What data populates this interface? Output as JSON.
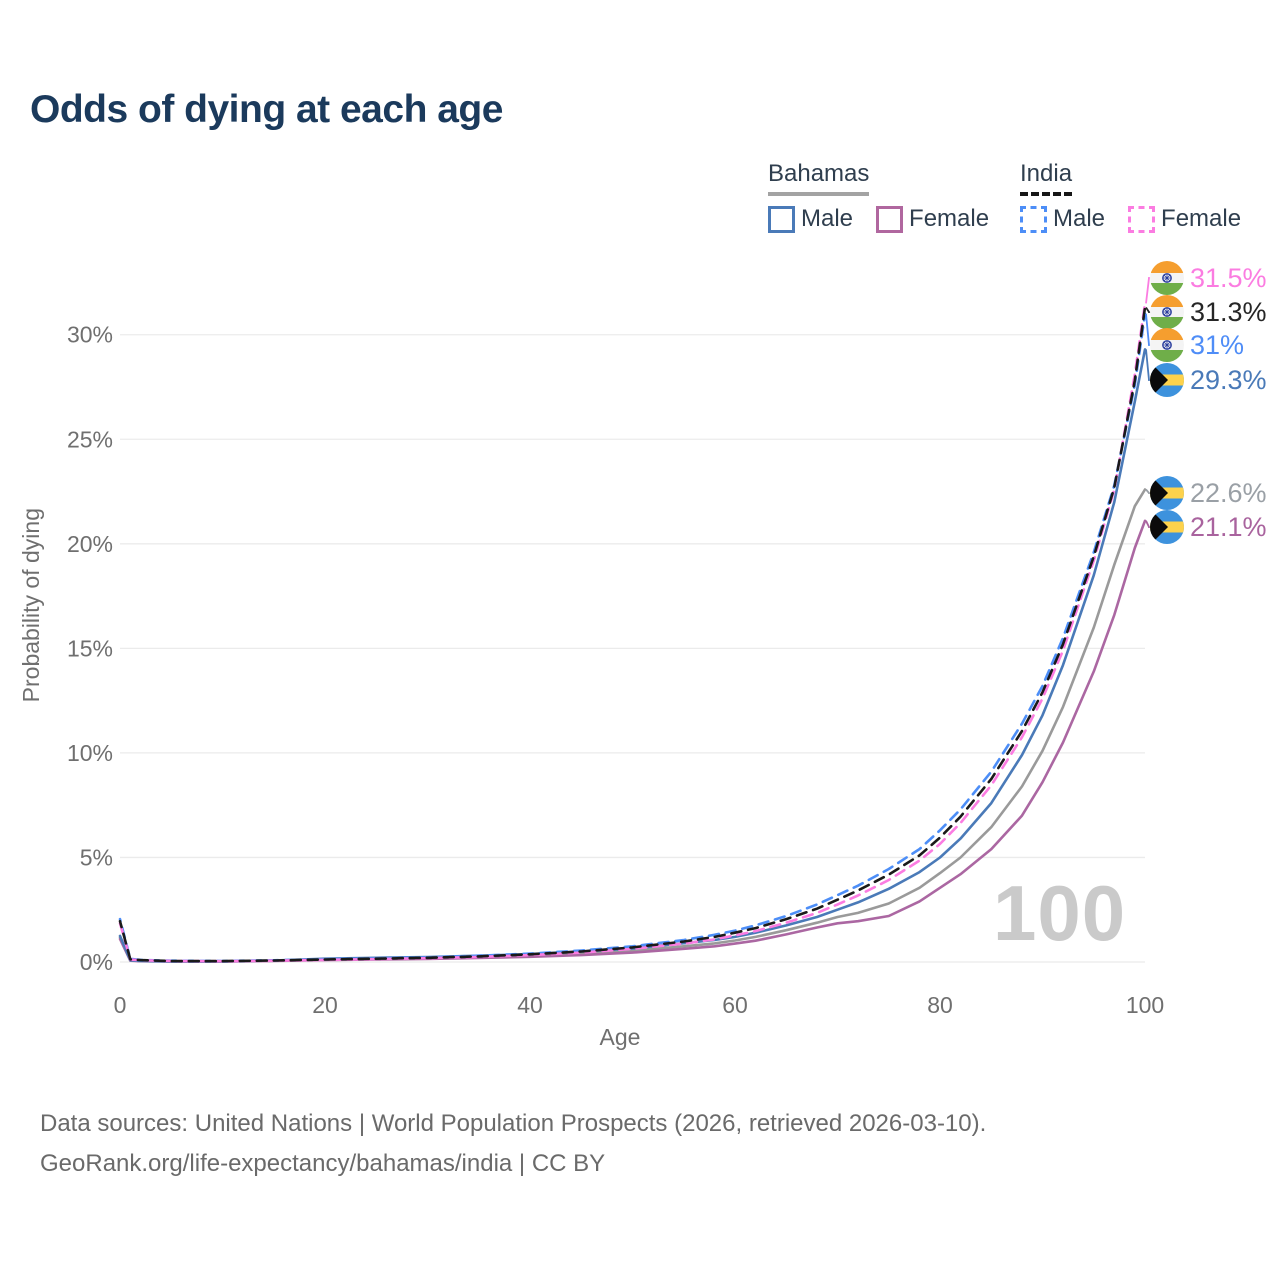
{
  "title": "Odds of dying at each age",
  "legend": {
    "groups": [
      {
        "country": "Bahamas",
        "underline_color": "#a3a3a3",
        "underline_style": "solid",
        "items": [
          {
            "label": "Male",
            "color": "#4a7ab8",
            "dashed": false
          },
          {
            "label": "Female",
            "color": "#b0679f",
            "dashed": false
          }
        ]
      },
      {
        "country": "India",
        "underline_color": "#161616",
        "underline_style": "dashed",
        "items": [
          {
            "label": "Male",
            "color": "#4d8ef7",
            "dashed": true
          },
          {
            "label": "Female",
            "color": "#fb7ce1",
            "dashed": true
          }
        ]
      }
    ]
  },
  "watermark": "100",
  "footer": {
    "line1": "Data sources: United Nations | World Population Prospects (2026, retrieved 2026-03-10).",
    "line2": "GeoRank.org/life-expectancy/bahamas/india | CC BY"
  },
  "chart_data": {
    "type": "line",
    "title": "Odds of dying at each age",
    "xlabel": "Age",
    "ylabel": "Probability of dying",
    "xlim": [
      0,
      100
    ],
    "ylim": [
      0,
      33
    ],
    "grid": true,
    "xticks": [
      "0",
      "20",
      "40",
      "60",
      "80",
      "100"
    ],
    "xtick_values": [
      0,
      20,
      40,
      60,
      80,
      100
    ],
    "ytick_labels": [
      "0%",
      "5%",
      "10%",
      "15%",
      "20%",
      "25%",
      "30%"
    ],
    "ytick_values": [
      0,
      5,
      10,
      15,
      20,
      25,
      30
    ],
    "ages": [
      0,
      1,
      2,
      5,
      10,
      15,
      20,
      25,
      30,
      35,
      40,
      45,
      50,
      55,
      58,
      60,
      62,
      65,
      68,
      70,
      72,
      75,
      78,
      80,
      82,
      85,
      88,
      90,
      92,
      95,
      97,
      99,
      100
    ],
    "series": [
      {
        "id": "bahamas-total",
        "name": "Bahamas",
        "country": "Bahamas",
        "sex": "All",
        "color": "#9a9a9a",
        "style": "solid",
        "values": [
          1.18,
          0.07,
          0.045,
          0.025,
          0.025,
          0.06,
          0.12,
          0.16,
          0.19,
          0.24,
          0.31,
          0.41,
          0.54,
          0.75,
          0.89,
          1.03,
          1.2,
          1.52,
          1.88,
          2.15,
          2.35,
          2.8,
          3.55,
          4.25,
          5.0,
          6.45,
          8.4,
          10.1,
          12.2,
          16.0,
          19.0,
          21.8,
          22.6
        ]
      },
      {
        "id": "bahamas-female",
        "name": "Bahamas Female",
        "country": "Bahamas",
        "sex": "Female",
        "color": "#ab67a2",
        "style": "solid",
        "values": [
          1.1,
          0.06,
          0.04,
          0.02,
          0.02,
          0.05,
          0.09,
          0.12,
          0.15,
          0.19,
          0.25,
          0.33,
          0.45,
          0.63,
          0.75,
          0.88,
          1.02,
          1.32,
          1.65,
          1.85,
          1.95,
          2.2,
          2.9,
          3.55,
          4.2,
          5.4,
          7.0,
          8.6,
          10.5,
          13.9,
          16.6,
          19.8,
          21.1
        ]
      },
      {
        "id": "bahamas-male",
        "name": "Bahamas Male",
        "country": "Bahamas",
        "sex": "Male",
        "color": "#4a7ab8",
        "style": "solid",
        "values": [
          1.25,
          0.08,
          0.05,
          0.03,
          0.03,
          0.07,
          0.16,
          0.2,
          0.24,
          0.3,
          0.38,
          0.5,
          0.65,
          0.9,
          1.05,
          1.2,
          1.4,
          1.75,
          2.15,
          2.5,
          2.85,
          3.5,
          4.3,
          5.0,
          5.9,
          7.6,
          9.9,
          11.8,
          14.2,
          18.5,
          22.0,
          26.8,
          29.3
        ]
      },
      {
        "id": "india-male",
        "name": "India Male",
        "country": "India",
        "sex": "Male",
        "color": "#4d8ef7",
        "style": "dashed",
        "values": [
          2.05,
          0.15,
          0.1,
          0.06,
          0.05,
          0.08,
          0.13,
          0.17,
          0.22,
          0.3,
          0.4,
          0.55,
          0.75,
          1.05,
          1.3,
          1.5,
          1.75,
          2.2,
          2.75,
          3.2,
          3.65,
          4.45,
          5.4,
          6.3,
          7.3,
          9.1,
          11.4,
          13.2,
          15.5,
          19.6,
          22.8,
          27.6,
          31.0
        ]
      },
      {
        "id": "india-female",
        "name": "India Female",
        "country": "India",
        "sex": "Female",
        "color": "#fb7ce1",
        "style": "dashed",
        "values": [
          1.85,
          0.12,
          0.08,
          0.05,
          0.04,
          0.06,
          0.1,
          0.14,
          0.18,
          0.24,
          0.33,
          0.45,
          0.63,
          0.88,
          1.08,
          1.27,
          1.48,
          1.88,
          2.35,
          2.75,
          3.18,
          3.92,
          4.85,
          5.65,
          6.65,
          8.45,
          10.75,
          12.6,
          14.9,
          19.2,
          22.6,
          28.1,
          31.5
        ]
      },
      {
        "id": "india-total",
        "name": "India",
        "country": "India",
        "sex": "All",
        "color": "#1a1a1a",
        "style": "dashed",
        "values": [
          1.95,
          0.13,
          0.09,
          0.05,
          0.045,
          0.07,
          0.12,
          0.16,
          0.2,
          0.27,
          0.37,
          0.5,
          0.7,
          0.98,
          1.2,
          1.4,
          1.62,
          2.05,
          2.55,
          2.98,
          3.42,
          4.18,
          5.1,
          5.95,
          6.95,
          8.75,
          11.05,
          12.9,
          15.2,
          19.4,
          22.7,
          27.8,
          31.3
        ]
      }
    ],
    "end_labels": [
      {
        "flag": "india",
        "series": "India Female",
        "label": "31.5%",
        "value": 31.5,
        "color": "#fb7ce1"
      },
      {
        "flag": "india",
        "series": "India",
        "label": "31.3%",
        "value": 31.3,
        "color": "#262626"
      },
      {
        "flag": "india",
        "series": "India Male",
        "label": "31%",
        "value": 31.0,
        "color": "#4f8df7"
      },
      {
        "flag": "bahamas",
        "series": "Bahamas Male",
        "label": "29.3%",
        "value": 29.3,
        "color": "#4a7ab8"
      },
      {
        "flag": "bahamas",
        "series": "Bahamas",
        "label": "22.6%",
        "value": 22.6,
        "color": "#9aa0a6"
      },
      {
        "flag": "bahamas",
        "series": "Bahamas Female",
        "label": "21.1%",
        "value": 21.1,
        "color": "#a9639e"
      }
    ]
  }
}
